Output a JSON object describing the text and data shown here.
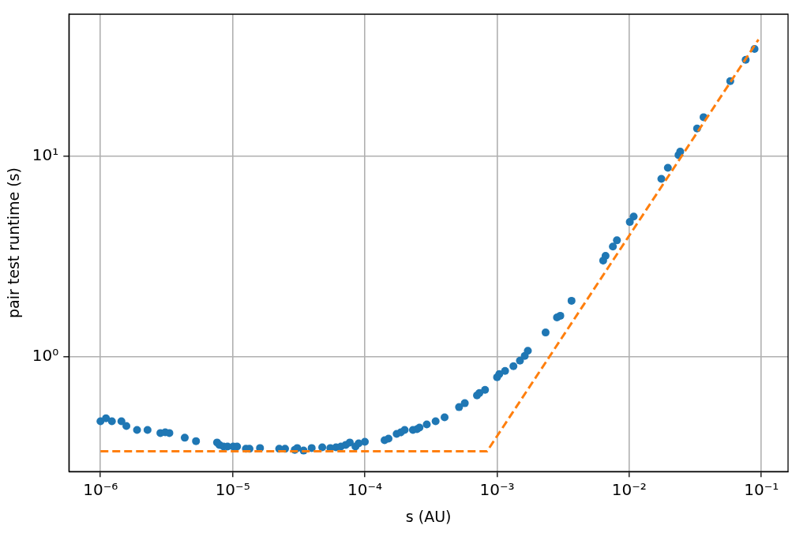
{
  "chart_data": {
    "type": "scatter",
    "xlabel": "s (AU)",
    "ylabel": "pair test runtime (s)",
    "log": "xy",
    "xlim": [
      5.77e-07,
      0.159
    ],
    "ylim": [
      0.268,
      50.8
    ],
    "xticks": [
      {
        "value": 1e-06,
        "label": "10⁻⁶"
      },
      {
        "value": 1e-05,
        "label": "10⁻⁵"
      },
      {
        "value": 0.0001,
        "label": "10⁻⁴"
      },
      {
        "value": 0.001,
        "label": "10⁻³"
      },
      {
        "value": 0.01,
        "label": "10⁻²"
      },
      {
        "value": 0.1,
        "label": "10⁻¹"
      }
    ],
    "yticks": [
      {
        "value": 1,
        "label": "10⁰"
      },
      {
        "value": 10,
        "label": "10¹"
      }
    ],
    "grid": true,
    "legend": false,
    "marker": "circle",
    "series": [
      {
        "color": "#1f77b4",
        "x": [
          1e-06,
          1.1e-06,
          1.22e-06,
          1.44e-06,
          1.57e-06,
          1.89e-06,
          2.27e-06,
          2.84e-06,
          3.09e-06,
          3.32e-06,
          4.34e-06,
          5.28e-06,
          7.62e-06,
          7.94e-06,
          8.53e-06,
          9.15e-06,
          1.01e-05,
          1.08e-05,
          1.26e-05,
          1.34e-05,
          1.61e-05,
          2.25e-05,
          2.49e-05,
          2.95e-05,
          3.08e-05,
          3.44e-05,
          3.96e-05,
          4.76e-05,
          5.48e-05,
          6.05e-05,
          6.59e-05,
          7.17e-05,
          7.69e-05,
          8.49e-05,
          8.98e-05,
          0.0001,
          0.000141,
          0.000151,
          0.000174,
          0.000187,
          0.0002,
          0.000231,
          0.000248,
          0.000259,
          0.000294,
          0.000343,
          0.000401,
          0.000516,
          0.00057,
          0.000705,
          0.000735,
          0.000811,
          0.001,
          0.00104,
          0.00115,
          0.00133,
          0.00149,
          0.00162,
          0.00171,
          0.00233,
          0.00284,
          0.00301,
          0.00366,
          0.00635,
          0.00662,
          0.00752,
          0.00807,
          0.0101,
          0.0108,
          0.0175,
          0.0196,
          0.0236,
          0.0243,
          0.0326,
          0.0365,
          0.0581,
          0.076,
          0.0887
        ],
        "values": [
          0.477,
          0.494,
          0.477,
          0.477,
          0.452,
          0.432,
          0.432,
          0.417,
          0.42,
          0.417,
          0.395,
          0.38,
          0.374,
          0.364,
          0.357,
          0.357,
          0.357,
          0.357,
          0.348,
          0.348,
          0.351,
          0.348,
          0.348,
          0.344,
          0.351,
          0.341,
          0.351,
          0.354,
          0.351,
          0.354,
          0.357,
          0.364,
          0.374,
          0.357,
          0.37,
          0.377,
          0.384,
          0.391,
          0.413,
          0.42,
          0.432,
          0.432,
          0.436,
          0.444,
          0.46,
          0.477,
          0.499,
          0.561,
          0.587,
          0.642,
          0.66,
          0.684,
          0.791,
          0.82,
          0.85,
          0.897,
          0.956,
          1.01,
          1.07,
          1.32,
          1.57,
          1.6,
          1.9,
          3.01,
          3.18,
          3.54,
          3.8,
          4.69,
          4.99,
          7.69,
          8.73,
          10.1,
          10.5,
          13.7,
          15.6,
          23.6,
          30.1,
          34.1
        ]
      },
      {
        "type": "line",
        "color": "#ff7f0e",
        "line_style": "dashed",
        "marker": "none",
        "x": [
          1e-06,
          0.00084,
          0.095
        ],
        "values": [
          0.338,
          0.338,
          38
        ]
      }
    ]
  }
}
